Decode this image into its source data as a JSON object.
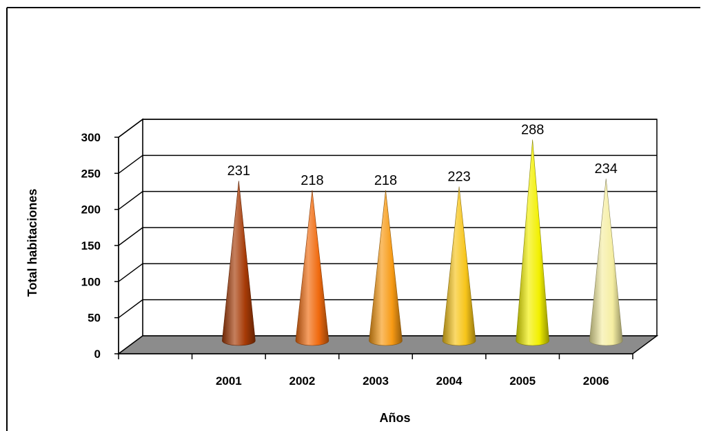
{
  "chart_data": {
    "type": "bar",
    "style": "3d-cone",
    "categories": [
      "2001",
      "2002",
      "2003",
      "2004",
      "2005",
      "2006"
    ],
    "values": [
      231,
      218,
      218,
      223,
      288,
      234
    ],
    "data_labels": [
      "231",
      "218",
      "218",
      "223",
      "288",
      "234"
    ],
    "colors": [
      "#a63a06",
      "#f06a0e",
      "#f79a14",
      "#f7c51a",
      "#f2f000",
      "#f5eea2"
    ],
    "ylabel": "Total habitaciones",
    "xlabel": "Años",
    "ylim": [
      0,
      300
    ],
    "yticks": [
      0,
      50,
      100,
      150,
      200,
      250,
      300
    ],
    "ytick_labels": [
      "0",
      "50",
      "100",
      "150",
      "200",
      "250",
      "300"
    ],
    "grid": true,
    "legend": "none"
  }
}
